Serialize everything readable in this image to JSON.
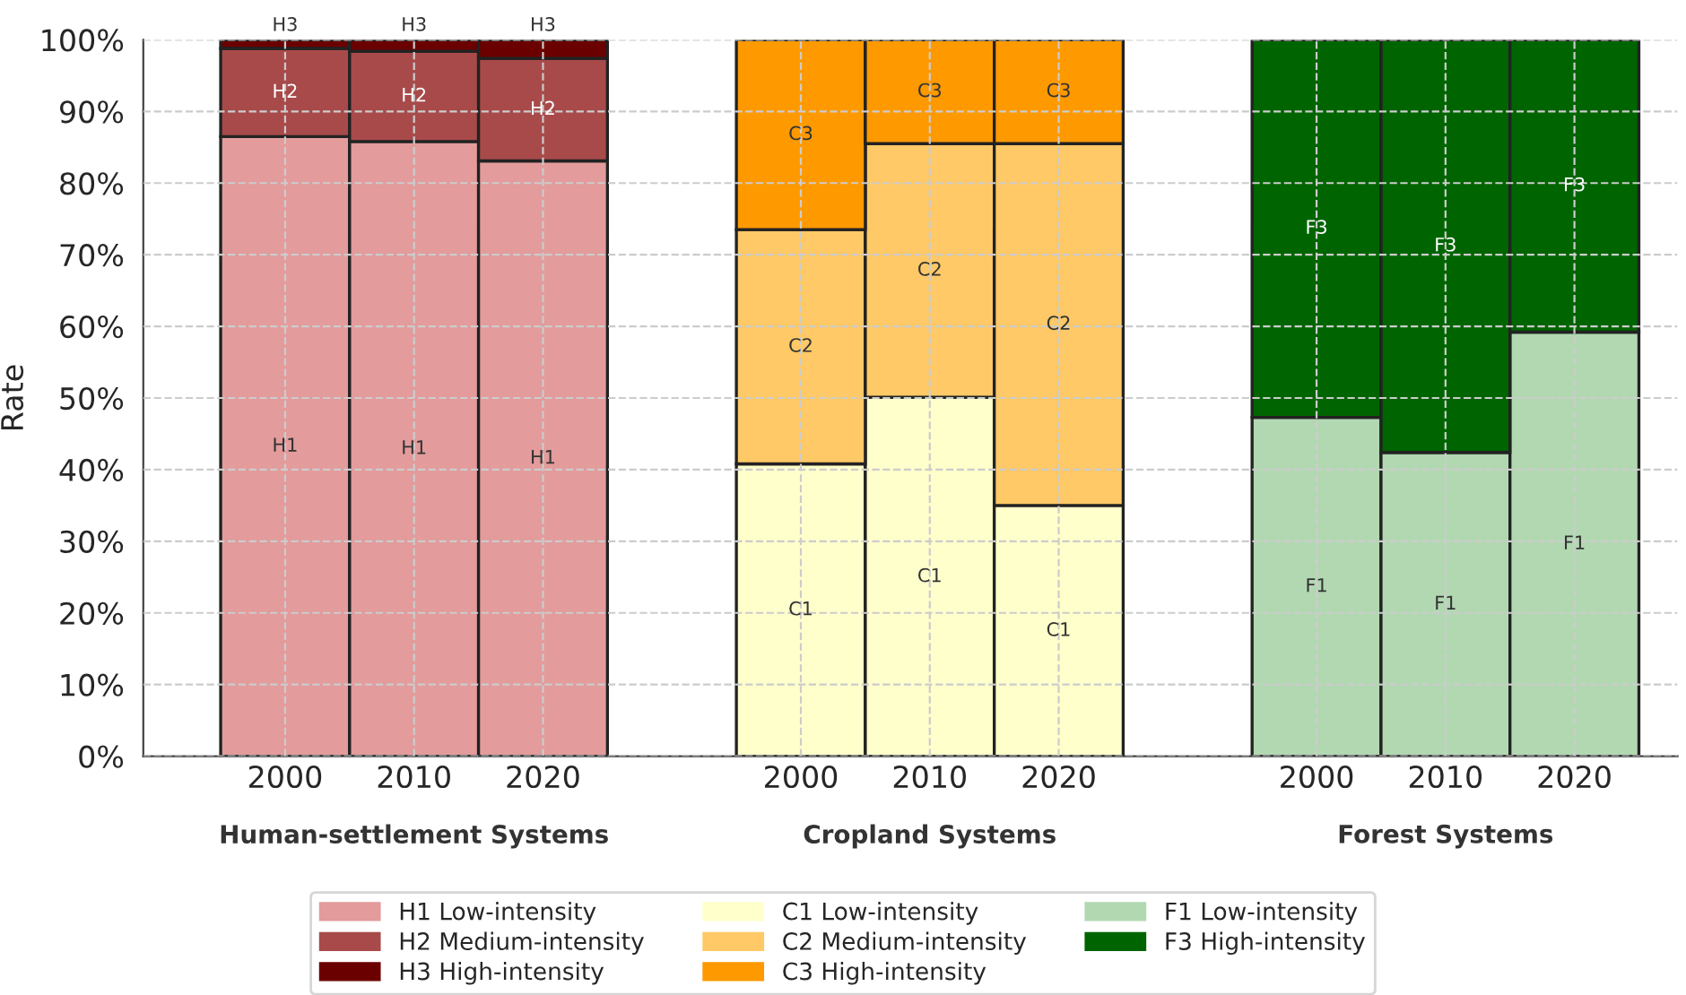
{
  "chart_data": {
    "type": "bar",
    "stacked": true,
    "ylabel": "Rate",
    "categories": [
      "2000",
      "2010",
      "2020",
      null,
      "2000",
      "2010",
      "2020",
      null,
      "2000",
      "2010",
      "2020"
    ],
    "ylim": [
      0,
      100
    ],
    "yticks": [
      {
        "value": 0,
        "label": "0%"
      },
      {
        "value": 10,
        "label": "10%"
      },
      {
        "value": 20,
        "label": "20%"
      },
      {
        "value": 30,
        "label": "30%"
      },
      {
        "value": 40,
        "label": "40%"
      },
      {
        "value": 50,
        "label": "50%"
      },
      {
        "value": 60,
        "label": "60%"
      },
      {
        "value": 70,
        "label": "70%"
      },
      {
        "value": 80,
        "label": "80%"
      },
      {
        "value": 90,
        "label": "90%"
      },
      {
        "value": 100,
        "label": "100%"
      }
    ],
    "grid": true,
    "legend": "bottom",
    "annotations": [
      "Human-settlement Systems",
      "Cropland Systems",
      "Forest Systems"
    ],
    "series": [
      {
        "name": "H1 Low-intensity",
        "color": "#e39b9c",
        "values": [
          86.5,
          85.8,
          83.1,
          null,
          null,
          null,
          null,
          null,
          null,
          null,
          null
        ],
        "value_labels": [
          "H1",
          "H1",
          "H1",
          null,
          null,
          null,
          null,
          null,
          null,
          null,
          null
        ]
      },
      {
        "name": "H2 Medium-intensity",
        "color": "#a84a4a",
        "values": [
          12.3,
          12.6,
          14.3,
          null,
          null,
          null,
          null,
          null,
          null,
          null,
          null
        ],
        "value_labels": [
          "H2",
          "H2",
          "H2",
          null,
          null,
          null,
          null,
          null,
          null,
          null,
          null
        ]
      },
      {
        "name": "H3 High-intensity",
        "color": "#6b0000",
        "values": [
          1.2,
          1.6,
          2.6,
          null,
          null,
          null,
          null,
          null,
          null,
          null,
          null
        ],
        "value_labels": [
          "H3",
          "H3",
          "H3",
          null,
          null,
          null,
          null,
          null,
          null,
          null,
          null
        ]
      },
      {
        "name": "C1 Low-intensity",
        "color": "#ffffcc",
        "values": [
          null,
          null,
          null,
          null,
          40.8,
          50.1,
          35.0,
          null,
          null,
          null,
          null
        ],
        "value_labels": [
          null,
          null,
          null,
          null,
          "C1",
          "C1",
          "C1",
          null,
          null,
          null,
          null
        ]
      },
      {
        "name": "C2 Medium-intensity",
        "color": "#fec966",
        "values": [
          null,
          null,
          null,
          null,
          32.7,
          35.4,
          50.5,
          null,
          null,
          null,
          null
        ],
        "value_labels": [
          null,
          null,
          null,
          null,
          "C2",
          "C2",
          "C2",
          null,
          null,
          null,
          null
        ]
      },
      {
        "name": "C3 High-intensity",
        "color": "#fe9900",
        "values": [
          null,
          null,
          null,
          null,
          26.5,
          14.5,
          14.5,
          null,
          null,
          null,
          null
        ],
        "value_labels": [
          null,
          null,
          null,
          null,
          "C3",
          "C3",
          "C3",
          null,
          null,
          null,
          null
        ]
      },
      {
        "name": "F1 Low-intensity",
        "color": "#b2d8b2",
        "values": [
          null,
          null,
          null,
          null,
          null,
          null,
          null,
          null,
          47.3,
          42.4,
          59.2
        ],
        "value_labels": [
          null,
          null,
          null,
          null,
          null,
          null,
          null,
          null,
          "F1",
          "F1",
          "F1"
        ]
      },
      {
        "name": "F3 High-intensity",
        "color": "#006400",
        "values": [
          null,
          null,
          null,
          null,
          null,
          null,
          null,
          null,
          52.7,
          57.6,
          40.8
        ],
        "value_labels": [
          null,
          null,
          null,
          null,
          null,
          null,
          null,
          null,
          "F3",
          "F3",
          "F3"
        ]
      }
    ]
  }
}
